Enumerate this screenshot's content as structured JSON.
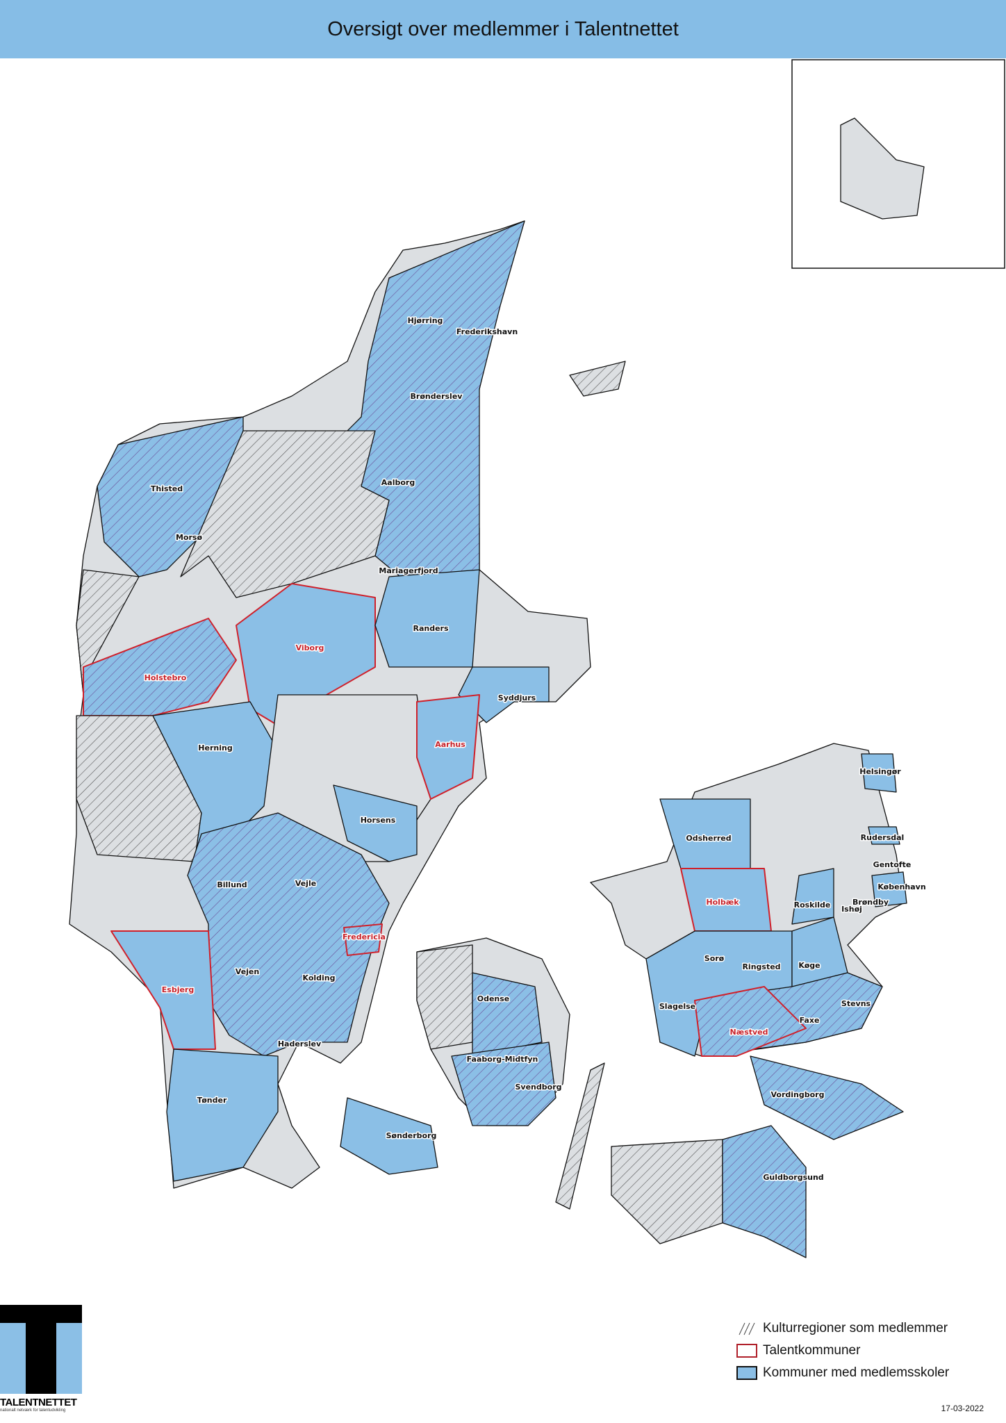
{
  "header": {
    "title": "Oversigt over medlemmer i Talentnettet"
  },
  "colors": {
    "member_blue": "#8bbfe6",
    "base_grey": "#dcdfe2",
    "talent_red": "#d0202a",
    "hatch": "#555555",
    "header_bg": "#86bde6"
  },
  "map": {
    "labels": [
      {
        "name": "Hjørring",
        "talent": false
      },
      {
        "name": "Frederikshavn",
        "talent": false
      },
      {
        "name": "Brønderslev",
        "talent": false
      },
      {
        "name": "Thisted",
        "talent": false
      },
      {
        "name": "Aalborg",
        "talent": false
      },
      {
        "name": "Morsø",
        "talent": false
      },
      {
        "name": "Mariagerfjord",
        "talent": false
      },
      {
        "name": "Randers",
        "talent": false
      },
      {
        "name": "Viborg",
        "talent": true
      },
      {
        "name": "Holstebro",
        "talent": true
      },
      {
        "name": "Syddjurs",
        "talent": false
      },
      {
        "name": "Aarhus",
        "talent": true
      },
      {
        "name": "Herning",
        "talent": false
      },
      {
        "name": "Horsens",
        "talent": false
      },
      {
        "name": "Billund",
        "talent": false
      },
      {
        "name": "Vejle",
        "talent": false
      },
      {
        "name": "Fredericia",
        "talent": true
      },
      {
        "name": "Vejen",
        "talent": false
      },
      {
        "name": "Kolding",
        "talent": false
      },
      {
        "name": "Esbjerg",
        "talent": true
      },
      {
        "name": "Haderslev",
        "talent": false
      },
      {
        "name": "Tønder",
        "talent": false
      },
      {
        "name": "Sønderborg",
        "talent": false
      },
      {
        "name": "Odense",
        "talent": false
      },
      {
        "name": "Faaborg-Midtfyn",
        "talent": false
      },
      {
        "name": "Svendborg",
        "talent": false
      },
      {
        "name": "Odsherred",
        "talent": false
      },
      {
        "name": "Holbæk",
        "talent": true
      },
      {
        "name": "Sorø",
        "talent": false
      },
      {
        "name": "Ringsted",
        "talent": false
      },
      {
        "name": "Køge",
        "talent": false
      },
      {
        "name": "Slagelse",
        "talent": false
      },
      {
        "name": "Næstved",
        "talent": true
      },
      {
        "name": "Faxe",
        "talent": false
      },
      {
        "name": "Stevns",
        "talent": false
      },
      {
        "name": "Vordingborg",
        "talent": false
      },
      {
        "name": "Guldborgsund",
        "talent": false
      },
      {
        "name": "Helsingør",
        "talent": false
      },
      {
        "name": "Rudersdal",
        "talent": false
      },
      {
        "name": "Gentofte",
        "talent": false
      },
      {
        "name": "København",
        "talent": false
      },
      {
        "name": "Roskilde",
        "talent": false
      },
      {
        "name": "Brøndby",
        "talent": false
      },
      {
        "name": "Ishøj",
        "talent": false
      }
    ]
  },
  "legend": {
    "items": [
      {
        "label": "Kulturregioner som medlemmer",
        "symbol": "hatch"
      },
      {
        "label": "Talentkommuner",
        "symbol": "red-outline"
      },
      {
        "label": "Kommuner med medlemsskoler",
        "symbol": "blue-fill"
      }
    ]
  },
  "logo": {
    "name": "TALENTNETTET",
    "tagline": "nationalt netværk for talentudvikling"
  },
  "date": "17-03-2022"
}
